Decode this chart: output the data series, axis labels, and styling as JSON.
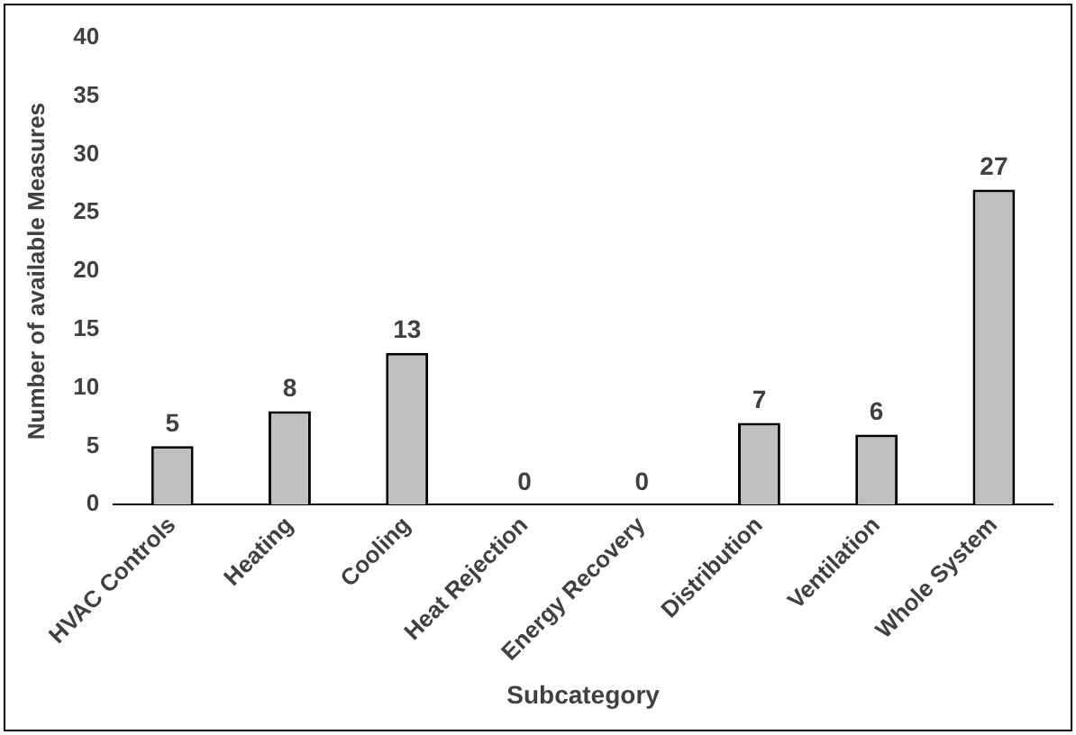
{
  "chart_data": {
    "type": "bar",
    "xlabel": "Subcategory",
    "ylabel": "Number of available Measures",
    "categories": [
      "HVAC Controls",
      "Heating",
      "Cooling",
      "Heat Rejection",
      "Energy Recovery",
      "Distribution",
      "Ventilation",
      "Whole System"
    ],
    "values": [
      5,
      8,
      13,
      0,
      0,
      7,
      6,
      27
    ],
    "color": "#bfbfbf",
    "ylim": [
      0,
      40
    ],
    "yticks": [
      0,
      5,
      10,
      15,
      20,
      25,
      30,
      35,
      40
    ],
    "grid": false,
    "legend": false,
    "data_labels": true
  }
}
